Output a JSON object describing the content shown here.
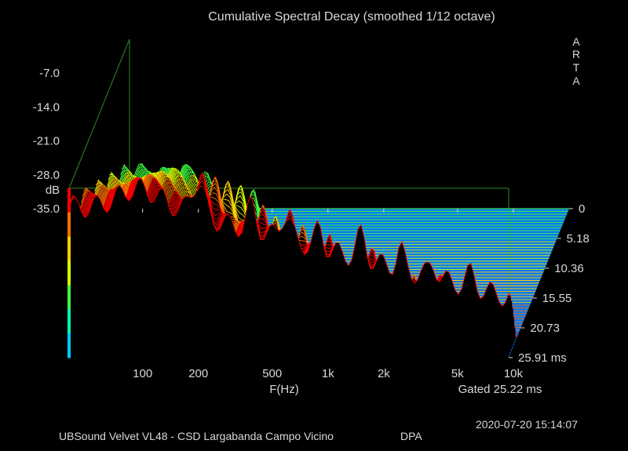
{
  "chart_data": {
    "type": "waterfall-3d",
    "title": "Cumulative Spectral Decay (smoothed 1/12 octave)",
    "brand": [
      "A",
      "R",
      "T",
      "A"
    ],
    "xlabel": "F(Hz)",
    "x_ticks": [
      "100",
      "200",
      "500",
      "1k",
      "2k",
      "5k",
      "10k"
    ],
    "x_tick_values": [
      100,
      200,
      500,
      1000,
      2000,
      5000,
      10000
    ],
    "x_range": [
      85,
      20000
    ],
    "ylabel": "dB",
    "y_ticks": [
      "-7.0",
      "-14.0",
      "-21.0",
      "-28.0",
      "-35.0"
    ],
    "y_range": [
      -35,
      0
    ],
    "z_unit": "ms",
    "z_ticks": [
      "0",
      "5.18",
      "10.36",
      "15.55",
      "20.73",
      "25.91 ms"
    ],
    "z_range": [
      0,
      25.91
    ],
    "gated_label": "Gated 25.22 ms",
    "colormap": [
      "#00c8ff",
      "#00ffb0",
      "#40ff40",
      "#d8ff00",
      "#ffd000",
      "#ff7000",
      "#ff0000"
    ],
    "floor_color": "#0a78f0",
    "frame_color": "#2a8a2a"
  },
  "footer": {
    "device": "UBSound Velvet VL48 - CSD Largabanda Campo Vicino",
    "mic": "DPA",
    "datetime": "2020-07-20  15:14:07"
  }
}
